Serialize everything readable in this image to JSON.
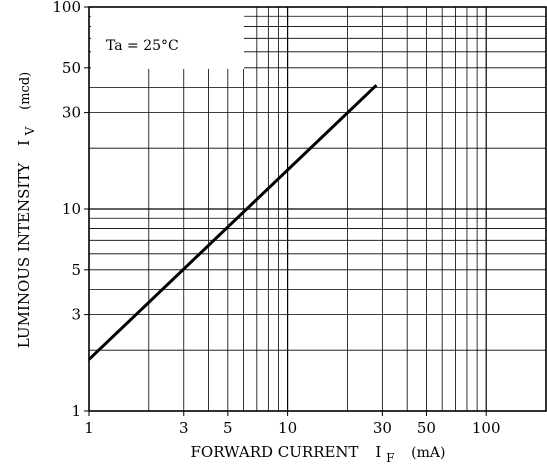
{
  "chart_data": {
    "type": "line",
    "x_scale": "log",
    "y_scale": "log",
    "xlim": [
      1,
      200
    ],
    "ylim": [
      1,
      100
    ],
    "x_ticks": [
      1,
      3,
      5,
      10,
      30,
      50,
      100
    ],
    "y_ticks": [
      1,
      3,
      5,
      10,
      30,
      50,
      100
    ],
    "x_tick_labels": [
      "1",
      "3",
      "5",
      "10",
      "30",
      "50",
      "100"
    ],
    "y_tick_labels": [
      "1",
      "3",
      "5",
      "10",
      "30",
      "50",
      "100"
    ],
    "grid": true,
    "xlabel_main": "FORWARD CURRENT",
    "xlabel_symbol": "I",
    "xlabel_subscript": "F",
    "xlabel_unit": "(mA)",
    "ylabel_main": "LUMINOUS INTENSITY",
    "ylabel_symbol": "I",
    "ylabel_subscript": "V",
    "ylabel_unit": "(mcd)",
    "annotation": "Ta = 25°C",
    "series": [
      {
        "x": [
          1,
          28
        ],
        "y": [
          1.8,
          41
        ]
      }
    ],
    "colors": {
      "line": "#000000",
      "grid": "#000000",
      "background": "#ffffff"
    }
  }
}
